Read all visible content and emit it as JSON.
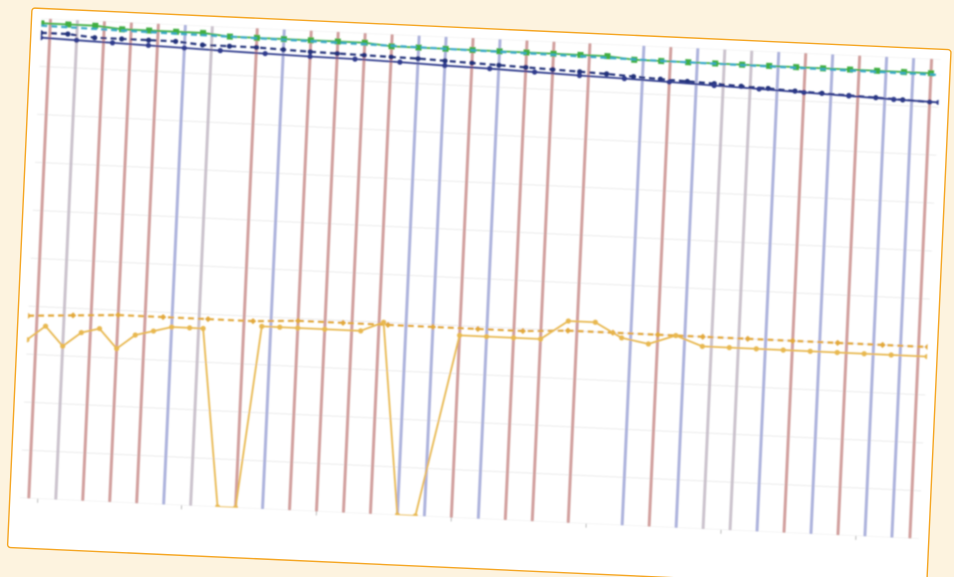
{
  "page": {
    "background": "#fdf3df",
    "card_background": "#ffffff",
    "card_border": "#f5a623"
  },
  "chart_data": {
    "type": "line",
    "title": "",
    "xlabel": "",
    "ylabel": "",
    "grid": true,
    "legend": "none",
    "xlim": [
      0,
      100
    ],
    "ylim": [
      0,
      100
    ],
    "x_ticks": [
      {
        "value": 2,
        "label": ""
      },
      {
        "value": 18,
        "label": ""
      },
      {
        "value": 33,
        "label": ""
      },
      {
        "value": 48,
        "label": ""
      },
      {
        "value": 63,
        "label": ""
      },
      {
        "value": 78,
        "label": ""
      },
      {
        "value": 93,
        "label": ""
      }
    ],
    "event_lines": [
      {
        "x": 1,
        "color": "#c98e8c",
        "label": ""
      },
      {
        "x": 4,
        "color": "#c2b8c4",
        "label": ""
      },
      {
        "x": 7,
        "color": "#c98e8c",
        "label": ""
      },
      {
        "x": 10,
        "color": "#c98e8c",
        "label": ""
      },
      {
        "x": 13,
        "color": "#c98e8c",
        "label": ""
      },
      {
        "x": 16,
        "color": "#9fa6d6",
        "label": ""
      },
      {
        "x": 19,
        "color": "#c2b8c4",
        "label": ""
      },
      {
        "x": 24,
        "color": "#c98e8c",
        "label": ""
      },
      {
        "x": 27,
        "color": "#9fa6d6",
        "label": ""
      },
      {
        "x": 30,
        "color": "#c98e8c",
        "label": ""
      },
      {
        "x": 33,
        "color": "#c98e8c",
        "label": ""
      },
      {
        "x": 36,
        "color": "#c98e8c",
        "label": ""
      },
      {
        "x": 39,
        "color": "#c98e8c",
        "label": ""
      },
      {
        "x": 42,
        "color": "#9fa6d6",
        "label": ""
      },
      {
        "x": 45,
        "color": "#9fa6d6",
        "label": ""
      },
      {
        "x": 48,
        "color": "#c98e8c",
        "label": ""
      },
      {
        "x": 51,
        "color": "#9fa6d6",
        "label": ""
      },
      {
        "x": 54,
        "color": "#c98e8c",
        "label": ""
      },
      {
        "x": 57,
        "color": "#c98e8c",
        "label": ""
      },
      {
        "x": 61,
        "color": "#c98e8c",
        "label": ""
      },
      {
        "x": 67,
        "color": "#9fa6d6",
        "label": ""
      },
      {
        "x": 70,
        "color": "#c98e8c",
        "label": ""
      },
      {
        "x": 73,
        "color": "#9fa6d6",
        "label": ""
      },
      {
        "x": 76,
        "color": "#c2b8c4",
        "label": ""
      },
      {
        "x": 79,
        "color": "#c2b8c4",
        "label": ""
      },
      {
        "x": 82,
        "color": "#9fa6d6",
        "label": ""
      },
      {
        "x": 85,
        "color": "#c98e8c",
        "label": ""
      },
      {
        "x": 88,
        "color": "#9fa6d6",
        "label": ""
      },
      {
        "x": 91,
        "color": "#c98e8c",
        "label": ""
      },
      {
        "x": 94,
        "color": "#9fa6d6",
        "label": ""
      },
      {
        "x": 97,
        "color": "#9fa6d6",
        "label": ""
      },
      {
        "x": 99,
        "color": "#c98e8c",
        "label": ""
      }
    ],
    "series": [
      {
        "color": "#3fae3f",
        "style": "solid",
        "marker": "square",
        "x": [
          0,
          3,
          6,
          9,
          12,
          15,
          18,
          21,
          24,
          27,
          30,
          33,
          36,
          39,
          42,
          45,
          48,
          51,
          54,
          57,
          60,
          63,
          66,
          69,
          72,
          75,
          78,
          81,
          84,
          87,
          90,
          93,
          96,
          99
        ],
        "values": [
          99,
          99,
          99,
          98.5,
          98.5,
          98.5,
          98.5,
          98,
          98,
          98,
          98,
          98,
          98,
          97.5,
          97.5,
          97.5,
          97.5,
          97.5,
          97.5,
          97.5,
          97.5,
          97.5,
          97,
          97,
          97,
          97,
          97,
          97,
          97,
          97,
          97,
          97,
          97,
          97
        ]
      },
      {
        "color": "#39a8c8",
        "style": "dashed",
        "marker": "none",
        "x": [
          0,
          10,
          20,
          30,
          40,
          50,
          60,
          70,
          80,
          90,
          100
        ],
        "values": [
          98.5,
          98.2,
          98,
          97.8,
          97.6,
          97.4,
          97.2,
          97,
          96.9,
          96.8,
          96.7
        ]
      },
      {
        "color": "#23307a",
        "style": "dashed",
        "marker": "circle",
        "x": [
          0,
          3,
          6,
          9,
          12,
          15,
          18,
          21,
          24,
          27,
          30,
          33,
          36,
          39,
          42,
          45,
          48,
          51,
          54,
          57,
          60,
          63,
          66,
          69,
          72,
          75,
          78,
          81,
          84,
          87,
          90,
          93,
          96,
          99
        ],
        "values": [
          97,
          97,
          96.5,
          96.5,
          96.5,
          96.5,
          96,
          96,
          96,
          95.8,
          95.6,
          95.5,
          95.4,
          95.3,
          95.2,
          95,
          94.8,
          94.6,
          94.4,
          94.2,
          94,
          93.8,
          93.5,
          93.2,
          93,
          92.8,
          92.5,
          92.3,
          92,
          91.8,
          91.6,
          91.4,
          91.2,
          91
        ]
      },
      {
        "color": "#2d3a8c",
        "style": "solid",
        "marker": "circle",
        "x": [
          0,
          4,
          8,
          12,
          16,
          20,
          25,
          30,
          35,
          40,
          45,
          50,
          55,
          60,
          65,
          70,
          75,
          80,
          85,
          90,
          95,
          100
        ],
        "values": [
          96,
          95.8,
          95.6,
          95.4,
          95.2,
          95,
          94.8,
          94.6,
          94.5,
          94.3,
          94,
          93.8,
          93.5,
          93.2,
          93,
          92.7,
          92.4,
          92.1,
          91.8,
          91.5,
          91.2,
          91
        ]
      },
      {
        "color": "#e2a83a",
        "style": "dashed",
        "marker": "diamond",
        "x": [
          0,
          5,
          10,
          15,
          20,
          25,
          30,
          35,
          40,
          45,
          50,
          55,
          60,
          65,
          70,
          75,
          80,
          85,
          90,
          95,
          100
        ],
        "values": [
          38,
          38.5,
          39,
          39,
          39,
          39,
          39.5,
          39.5,
          39.5,
          39.5,
          39.5,
          39.5,
          40,
          40,
          40,
          40,
          40,
          40,
          40,
          40,
          40
        ]
      },
      {
        "color": "#e8b850",
        "style": "solid",
        "marker": "circle",
        "x": [
          0,
          2,
          4,
          6,
          8,
          10,
          12,
          14,
          16,
          18,
          19.5,
          22,
          24,
          26,
          28,
          30,
          33,
          37,
          39.5,
          42,
          44,
          48,
          51,
          54,
          57,
          60,
          63,
          66,
          69,
          72,
          75,
          78,
          81,
          84,
          87,
          90,
          93,
          96,
          100
        ],
        "values": [
          33,
          36,
          32,
          35,
          36,
          32,
          35,
          36,
          37,
          37,
          37,
          0,
          0,
          38,
          38,
          38,
          38,
          38,
          40,
          0,
          0,
          38,
          38,
          38,
          38,
          42,
          42,
          39,
          38,
          40,
          38,
          38,
          38,
          38,
          38,
          38,
          38,
          38,
          38
        ]
      }
    ]
  }
}
